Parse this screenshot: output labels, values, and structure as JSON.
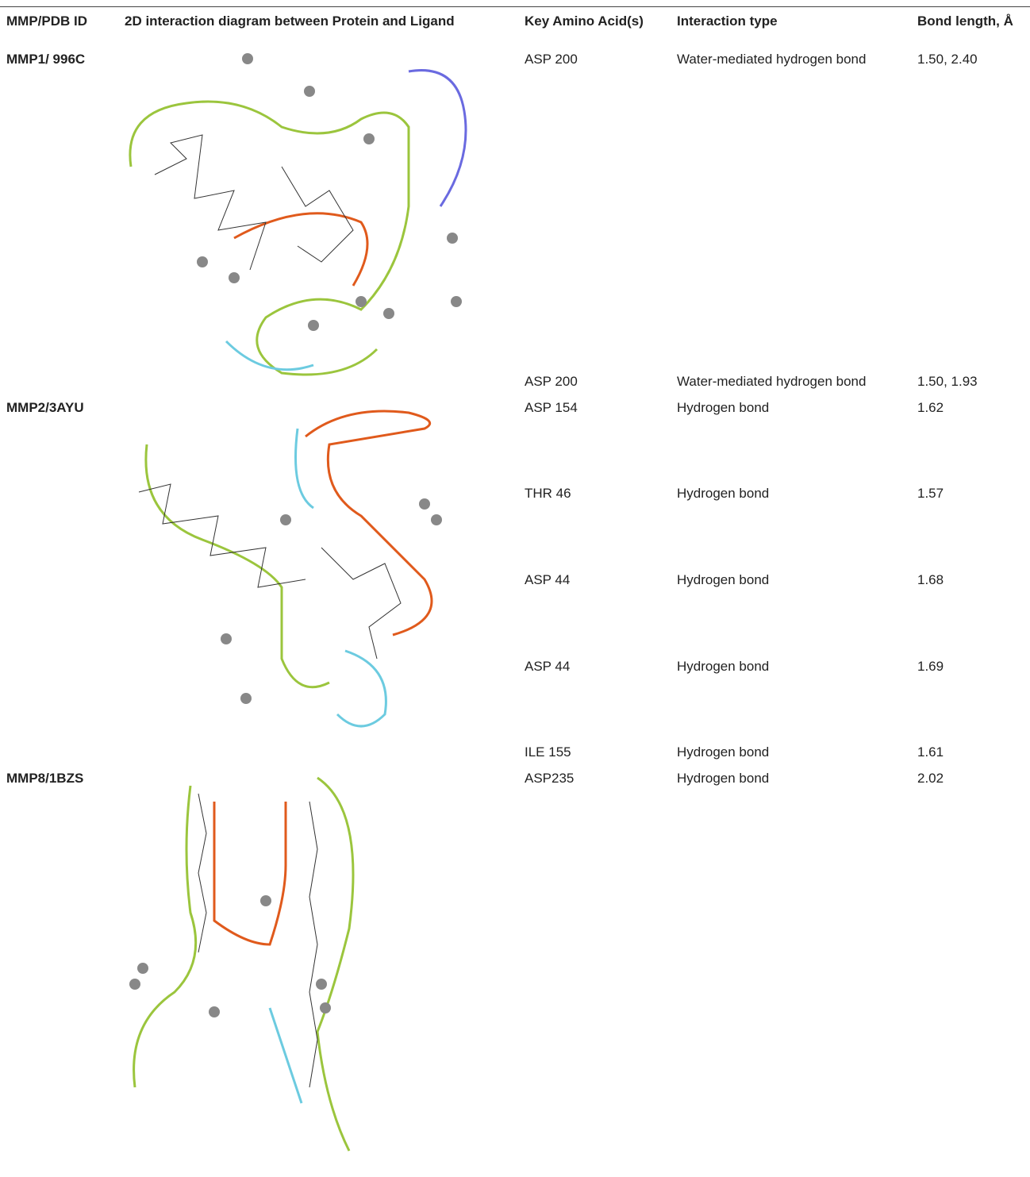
{
  "table": {
    "columns": [
      "MMP/PDB ID",
      "2D interaction diagram between Protein and Ligand",
      "Key Amino Acid(s)",
      "Interaction type",
      "Bond length, Å"
    ],
    "rows": [
      {
        "id": "MMP1/ 996C",
        "interactions": [
          {
            "amino": "ASP 200",
            "type": "Water-mediated hydrogen bond",
            "length": "1.50, 2.40"
          },
          {
            "amino": "ASP 200",
            "type": "Water-mediated hydrogen bond",
            "length": "1.50, 1.93"
          }
        ]
      },
      {
        "id": "MMP2/3AYU",
        "interactions": [
          {
            "amino": "ASP 154",
            "type": "Hydrogen bond",
            "length": "1.62"
          },
          {
            "amino": "THR 46",
            "type": "Hydrogen bond",
            "length": "1.57"
          },
          {
            "amino": "ASP 44",
            "type": "Hydrogen bond",
            "length": "1.68"
          },
          {
            "amino": "ASP 44",
            "type": "Hydrogen bond",
            "length": "1.69"
          },
          {
            "amino": "ILE 155",
            "type": "Hydrogen bond",
            "length": "1.61"
          }
        ]
      },
      {
        "id": "MMP8/1BZS",
        "interactions": [
          {
            "amino": "ASP235",
            "type": "Hydrogen bond",
            "length": "2.02"
          }
        ]
      }
    ]
  }
}
